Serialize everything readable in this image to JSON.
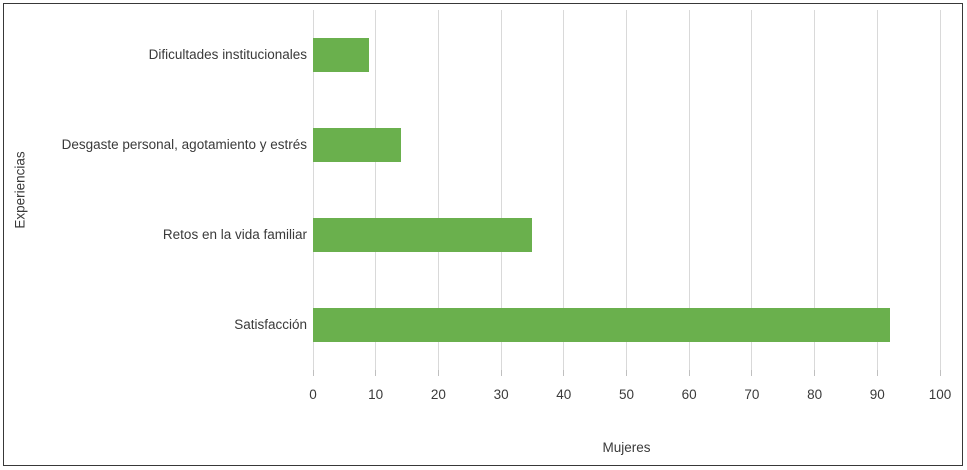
{
  "chart_data": {
    "type": "bar",
    "orientation": "horizontal",
    "title": "",
    "xlabel": "Mujeres",
    "ylabel": "Experiencias",
    "categories": [
      "Dificultades institucionales",
      "Desgaste personal, agotamiento y estrés",
      "Retos en la vida familiar",
      "Satisfacción"
    ],
    "values": [
      9,
      14,
      35,
      92
    ],
    "xlim": [
      0,
      100
    ],
    "xticks": [
      0,
      10,
      20,
      30,
      40,
      50,
      60,
      70,
      80,
      90,
      100
    ],
    "grid": true,
    "legend": false,
    "colors": {
      "bar": "#6ab04d",
      "gridline": "#d9d9d9",
      "tick": "#bfbfbf",
      "text": "#3a3a3a",
      "frame_border": "#383838",
      "background": "#ffffff"
    }
  }
}
